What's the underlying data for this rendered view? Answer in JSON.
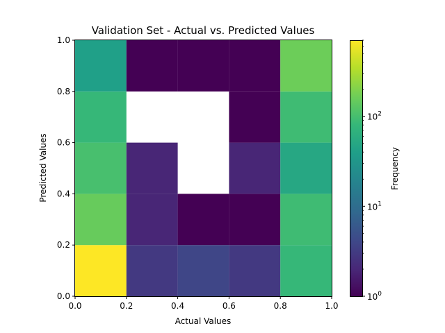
{
  "chart_data": {
    "type": "heatmap",
    "title": "Validation Set - Actual vs. Predicted Values",
    "xlabel": "Actual Values",
    "ylabel": "Predicted Values",
    "xlim": [
      0.0,
      1.0
    ],
    "ylim": [
      0.0,
      1.0
    ],
    "x_edges": [
      0.0,
      0.2,
      0.4,
      0.6,
      0.8,
      1.0
    ],
    "y_edges": [
      0.0,
      0.2,
      0.4,
      0.6,
      0.8,
      1.0
    ],
    "xticks": [
      "0.0",
      "0.2",
      "0.4",
      "0.6",
      "0.8",
      "1.0"
    ],
    "yticks": [
      "0.0",
      "0.2",
      "0.4",
      "0.6",
      "0.8",
      "1.0"
    ],
    "counts_note": "rows ordered bottom (y 0.0-0.2) to top (y 0.8-1.0); columns ordered left (x 0.0-0.2) to right; null = empty bin",
    "counts": [
      [
        700,
        3,
        4,
        3,
        80
      ],
      [
        150,
        2,
        1,
        1,
        90
      ],
      [
        100,
        2,
        null,
        2,
        50
      ],
      [
        80,
        null,
        null,
        1,
        90
      ],
      [
        40,
        1,
        1,
        1,
        160
      ]
    ],
    "colorbar": {
      "label": "Frequency",
      "scale": "log",
      "range": [
        1,
        700
      ],
      "ticks": [
        {
          "value": 1,
          "base": "10",
          "exp": "0"
        },
        {
          "value": 10,
          "base": "10",
          "exp": "1"
        },
        {
          "value": 100,
          "base": "10",
          "exp": "2"
        }
      ],
      "colormap": "viridis"
    }
  }
}
